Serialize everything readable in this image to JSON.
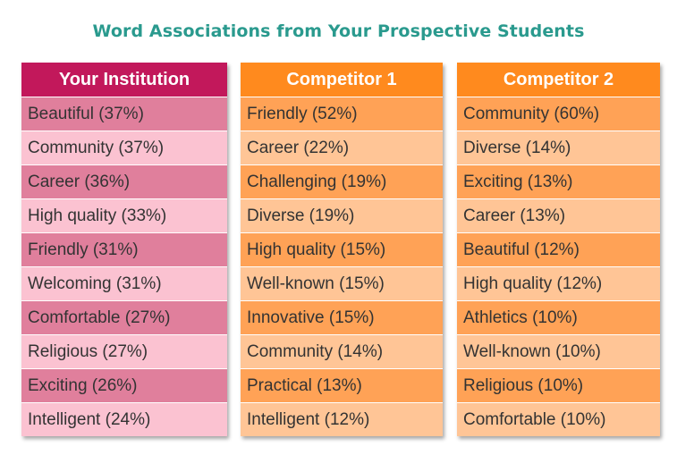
{
  "title": "Word Associations from Your Prospective Students",
  "columns": [
    {
      "header": "Your Institution",
      "header_color": "#c2185b",
      "items": [
        "Beautiful (37%)",
        "Community (37%)",
        "Career (36%)",
        "High quality (33%)",
        "Friendly (31%)",
        "Welcoming (31%)",
        "Comfortable (27%)",
        "Religious (27%)",
        "Exciting (26%)",
        "Intelligent (24%)"
      ]
    },
    {
      "header": "Competitor 1",
      "header_color": "#ff8a1e",
      "items": [
        "Friendly (52%)",
        "Career (22%)",
        "Challenging (19%)",
        "Diverse (19%)",
        "High quality (15%)",
        "Well-known (15%)",
        "Innovative (15%)",
        "Community (14%)",
        "Practical (13%)",
        "Intelligent (12%)"
      ]
    },
    {
      "header": "Competitor 2",
      "header_color": "#ff8a1e",
      "items": [
        "Community (60%)",
        "Diverse (14%)",
        "Exciting (13%)",
        "Career (13%)",
        "Beautiful (12%)",
        "High quality (12%)",
        "Athletics (10%)",
        "Well-known (10%)",
        "Religious (10%)",
        "Comfortable (10%)"
      ]
    }
  ]
}
